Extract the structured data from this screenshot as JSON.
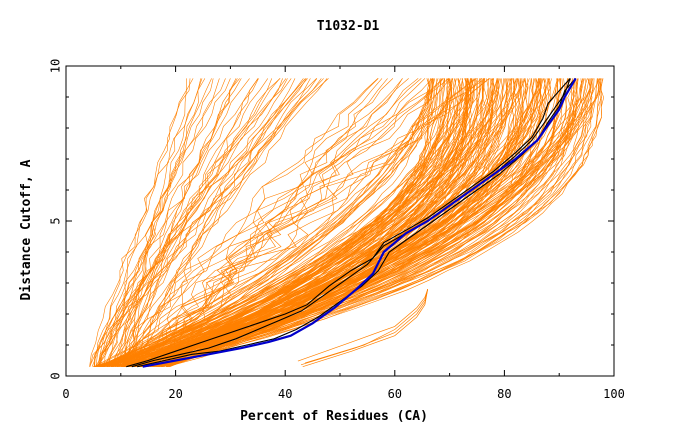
{
  "chart_data": {
    "type": "line",
    "title": "T1032-D1",
    "xlabel": "Percent of Residues (CA)",
    "ylabel": "Distance Cutoff, A",
    "xlim": [
      0,
      100
    ],
    "ylim": [
      0,
      10
    ],
    "xticks": [
      0,
      20,
      40,
      60,
      80,
      100
    ],
    "yticks": [
      0,
      5,
      10
    ],
    "x_tick_labels": [
      "0",
      "20",
      "40",
      "60",
      "80",
      "100"
    ],
    "y_tick_labels": [
      "0",
      "5",
      "10"
    ],
    "grid": false,
    "legend": "none",
    "colors": {
      "background_models": "#ff8000",
      "highlight_black": "#000000",
      "highlight_blue": "#0000cc"
    },
    "series": [
      {
        "group": "highlight",
        "color": "#000000",
        "x": [
          11,
          15,
          20,
          25,
          30,
          35,
          40,
          44,
          48,
          52,
          56,
          58,
          62,
          66,
          70,
          74,
          78,
          82,
          85,
          87,
          88,
          90,
          92
        ],
        "y": [
          0.3,
          0.5,
          0.8,
          1.1,
          1.4,
          1.7,
          2.0,
          2.3,
          2.9,
          3.4,
          3.8,
          4.3,
          4.7,
          5.1,
          5.6,
          6.1,
          6.6,
          7.2,
          7.7,
          8.3,
          8.8,
          9.2,
          9.6
        ]
      },
      {
        "group": "highlight",
        "color": "#000000",
        "x": [
          12,
          16,
          21,
          26,
          31,
          35,
          39,
          43,
          47,
          51,
          55,
          58,
          62,
          66,
          70,
          74,
          78,
          82,
          85,
          87,
          89,
          91,
          92
        ],
        "y": [
          0.3,
          0.5,
          0.7,
          0.9,
          1.2,
          1.5,
          1.8,
          2.1,
          2.6,
          3.1,
          3.6,
          4.2,
          4.6,
          5.0,
          5.5,
          6.0,
          6.5,
          7.1,
          7.6,
          8.1,
          8.6,
          9.1,
          9.6
        ]
      },
      {
        "group": "highlight",
        "color": "#000000",
        "x": [
          13,
          18,
          23,
          28,
          33,
          38,
          42,
          46,
          50,
          54,
          57,
          59,
          63,
          67,
          71,
          75,
          79,
          83,
          86,
          88,
          90,
          91,
          93
        ],
        "y": [
          0.3,
          0.5,
          0.7,
          0.8,
          1.0,
          1.2,
          1.5,
          1.9,
          2.4,
          2.9,
          3.4,
          4.0,
          4.5,
          5.0,
          5.5,
          6.0,
          6.5,
          7.1,
          7.6,
          8.2,
          8.7,
          9.2,
          9.6
        ]
      },
      {
        "group": "highlight",
        "color": "#0000cc",
        "x": [
          14,
          20,
          26,
          32,
          37,
          41,
          45,
          49,
          53,
          56,
          58,
          62,
          66,
          70,
          74,
          78,
          82,
          86,
          88,
          90,
          91,
          92,
          93
        ],
        "y": [
          0.3,
          0.5,
          0.7,
          0.9,
          1.1,
          1.3,
          1.7,
          2.2,
          2.8,
          3.3,
          4.0,
          4.6,
          5.0,
          5.5,
          6.0,
          6.5,
          7.0,
          7.6,
          8.1,
          8.6,
          9.0,
          9.3,
          9.6
        ]
      }
    ]
  }
}
